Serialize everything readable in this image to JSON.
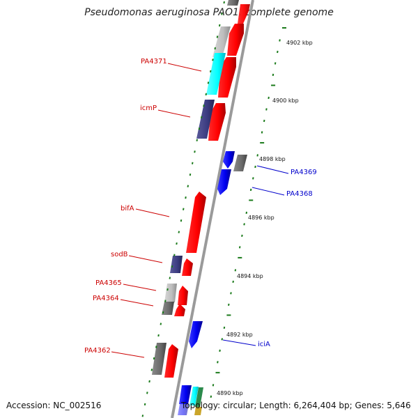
{
  "title": "Pseudomonas aeruginosa PAO1, complete genome",
  "footer": {
    "accession": "Accession: NC_002516",
    "summary": "Topology: circular; Length: 6,264,404 bp; Genes: 5,646"
  },
  "colors": {
    "forward_label": "#cc0000",
    "reverse_label": "#0000cc",
    "tick": "#1a7a1a",
    "backbone": "#888888"
  },
  "kbp_labels": [
    "4902 kbp",
    "4900 kbp",
    "4898 kbp",
    "4896 kbp",
    "4894 kbp",
    "4892 kbp",
    "4890 kbp"
  ],
  "forward_labels": [
    "PA4371",
    "icmP",
    "bifA",
    "sodB",
    "PA4365",
    "PA4364",
    "PA4362"
  ],
  "reverse_labels": [
    "PA4369",
    "PA4368",
    "iciA"
  ]
}
